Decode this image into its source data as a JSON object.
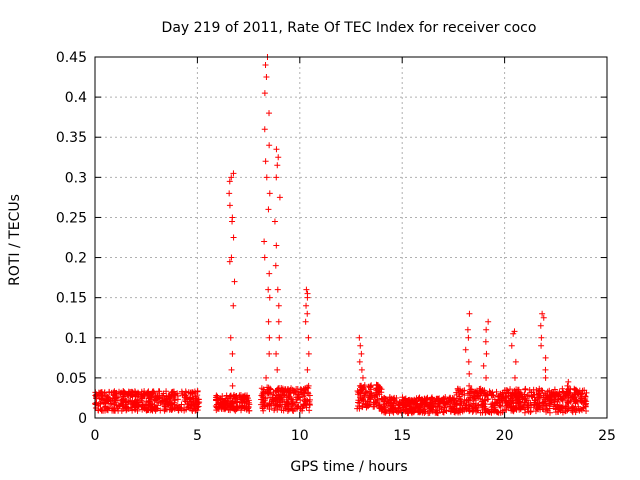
{
  "chart_data": {
    "type": "scatter",
    "title": "Day 219 of 2011, Rate Of TEC Index for receiver coco",
    "xlabel": "GPS time / hours",
    "ylabel": "ROTI / TECUs",
    "xlim": [
      0,
      25
    ],
    "ylim": [
      0,
      0.45
    ],
    "x_ticks": [
      0,
      5,
      10,
      15,
      20,
      25
    ],
    "x_tick_labels": [
      "0",
      "5",
      "10",
      "15",
      "20",
      "25"
    ],
    "y_ticks": [
      0,
      0.05,
      0.1,
      0.15,
      0.2,
      0.25,
      0.3,
      0.35,
      0.4,
      0.45
    ],
    "y_tick_labels": [
      "0",
      "0.05",
      "0.1",
      "0.15",
      "0.2",
      "0.25",
      "0.3",
      "0.35",
      "0.4",
      "0.45"
    ],
    "grid": true,
    "marker": "+",
    "color": "#ff0000",
    "series": [
      {
        "name": "ROTI",
        "segments": [
          {
            "x_start": 0.0,
            "x_end": 5.1,
            "base": 0.02,
            "spread": 0.025
          },
          {
            "x_start": 5.9,
            "x_end": 7.6,
            "base": 0.018,
            "spread": 0.02
          },
          {
            "x_start": 8.1,
            "x_end": 10.5,
            "base": 0.022,
            "spread": 0.03
          },
          {
            "x_start": 12.8,
            "x_end": 14.0,
            "base": 0.025,
            "spread": 0.03
          },
          {
            "x_start": 14.0,
            "x_end": 17.6,
            "base": 0.015,
            "spread": 0.02
          },
          {
            "x_start": 17.6,
            "x_end": 24.0,
            "base": 0.02,
            "spread": 0.03
          }
        ],
        "peaks": [
          {
            "x": 6.7,
            "y": [
              0.04,
              0.06,
              0.08,
              0.1,
              0.14,
              0.17,
              0.195,
              0.2,
              0.225,
              0.245,
              0.25,
              0.265,
              0.28,
              0.295,
              0.3,
              0.305
            ]
          },
          {
            "x": 8.4,
            "y": [
              0.05,
              0.08,
              0.1,
              0.12,
              0.15,
              0.16,
              0.18,
              0.2,
              0.22,
              0.26,
              0.28,
              0.3,
              0.32,
              0.34,
              0.36,
              0.38,
              0.405,
              0.425,
              0.44,
              0.45
            ]
          },
          {
            "x": 8.9,
            "y": [
              0.06,
              0.08,
              0.1,
              0.12,
              0.14,
              0.16,
              0.19,
              0.215,
              0.245,
              0.275,
              0.3,
              0.315,
              0.325,
              0.335
            ]
          },
          {
            "x": 10.3,
            "y": [
              0.04,
              0.06,
              0.08,
              0.1,
              0.12,
              0.13,
              0.14,
              0.15,
              0.155,
              0.16
            ]
          },
          {
            "x": 12.95,
            "y": [
              0.04,
              0.05,
              0.06,
              0.07,
              0.08,
              0.09,
              0.1
            ]
          },
          {
            "x": 18.2,
            "y": [
              0.04,
              0.055,
              0.07,
              0.085,
              0.1,
              0.11,
              0.13
            ]
          },
          {
            "x": 19.1,
            "y": [
              0.05,
              0.065,
              0.08,
              0.095,
              0.11,
              0.12
            ]
          },
          {
            "x": 20.5,
            "y": [
              0.05,
              0.07,
              0.09,
              0.105,
              0.108
            ]
          },
          {
            "x": 21.9,
            "y": [
              0.05,
              0.06,
              0.075,
              0.09,
              0.1,
              0.115,
              0.125,
              0.13
            ]
          },
          {
            "x": 23.2,
            "y": [
              0.04,
              0.045
            ]
          }
        ]
      }
    ]
  }
}
